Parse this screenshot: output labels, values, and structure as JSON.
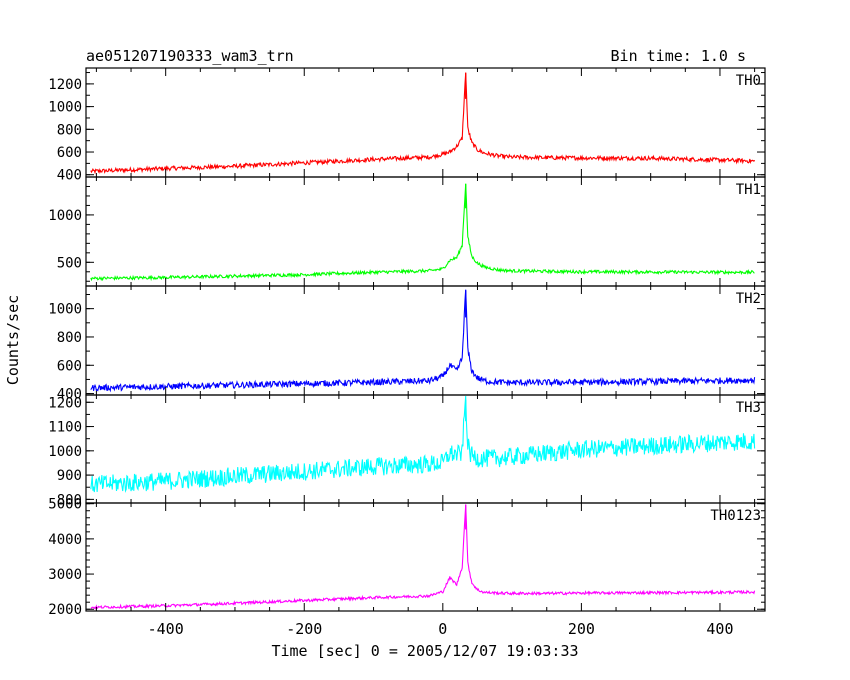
{
  "header": {
    "title": "ae051207190333_wam3_trn",
    "bin_time": "Bin time: 1.0 s"
  },
  "chart_data": {
    "type": "line",
    "title": "ae051207190333_wam3_trn",
    "xlabel": "Time [sec] 0 = 2005/12/07 19:03:33",
    "ylabel": "Counts/sec",
    "xlim": [
      -515,
      465
    ],
    "x_ticks": [
      -400,
      -200,
      0,
      200,
      400
    ],
    "x_minor_step": 50,
    "grid": false,
    "panels": [
      {
        "name": "TH0",
        "color": "#ff0000",
        "ylim": [
          380,
          1340
        ],
        "y_ticks": [
          400,
          600,
          800,
          1000,
          1200
        ],
        "y_minor_step": 100,
        "x": [
          -510,
          -400,
          -300,
          -200,
          -100,
          -20,
          0,
          10,
          20,
          28,
          33,
          36,
          42,
          50,
          60,
          80,
          100,
          150,
          200,
          300,
          400,
          450
        ],
        "y": [
          430,
          455,
          475,
          505,
          535,
          555,
          580,
          600,
          650,
          720,
          1300,
          800,
          680,
          620,
          590,
          565,
          555,
          550,
          548,
          545,
          530,
          520
        ]
      },
      {
        "name": "TH1",
        "color": "#00ff00",
        "ylim": [
          250,
          1400
        ],
        "y_ticks": [
          500,
          1000
        ],
        "y_minor_step": 100,
        "x": [
          -510,
          -400,
          -300,
          -200,
          -100,
          -20,
          0,
          10,
          20,
          28,
          33,
          36,
          42,
          50,
          60,
          80,
          100,
          150,
          200,
          300,
          400,
          450
        ],
        "y": [
          330,
          340,
          355,
          370,
          395,
          410,
          430,
          520,
          550,
          680,
          1330,
          760,
          560,
          490,
          450,
          420,
          410,
          405,
          400,
          398,
          395,
          395
        ]
      },
      {
        "name": "TH2",
        "color": "#0000ff",
        "ylim": [
          390,
          1160
        ],
        "y_ticks": [
          400,
          600,
          800,
          1000
        ],
        "y_minor_step": 100,
        "x": [
          -510,
          -400,
          -300,
          -200,
          -100,
          -20,
          0,
          10,
          20,
          28,
          33,
          36,
          42,
          50,
          60,
          80,
          100,
          150,
          200,
          300,
          400,
          450
        ],
        "y": [
          440,
          450,
          460,
          470,
          480,
          490,
          520,
          600,
          560,
          650,
          1130,
          700,
          560,
          510,
          490,
          480,
          478,
          478,
          480,
          485,
          492,
          495
        ]
      },
      {
        "name": "TH3",
        "color": "#00ffff",
        "ylim": [
          785,
          1230
        ],
        "y_ticks": [
          800,
          900,
          1000,
          1100,
          1200
        ],
        "y_minor_step": 50,
        "x": [
          -510,
          -400,
          -300,
          -200,
          -100,
          -20,
          0,
          10,
          20,
          28,
          33,
          36,
          42,
          50,
          60,
          80,
          100,
          150,
          200,
          300,
          400,
          450
        ],
        "y": [
          860,
          875,
          895,
          915,
          935,
          945,
          950,
          990,
          985,
          990,
          1210,
          1000,
          980,
          970,
          968,
          970,
          975,
          990,
          1005,
          1020,
          1035,
          1040
        ]
      },
      {
        "name": "TH0123",
        "color": "#ff00ff",
        "ylim": [
          1950,
          5020
        ],
        "y_ticks": [
          2000,
          3000,
          4000,
          5000
        ],
        "y_minor_step": 200,
        "x": [
          -510,
          -400,
          -300,
          -200,
          -100,
          -20,
          0,
          10,
          20,
          28,
          33,
          36,
          42,
          50,
          60,
          80,
          100,
          150,
          200,
          300,
          400,
          450
        ],
        "y": [
          2050,
          2100,
          2170,
          2250,
          2330,
          2380,
          2500,
          2900,
          2700,
          3200,
          4980,
          3300,
          2750,
          2550,
          2480,
          2460,
          2450,
          2450,
          2460,
          2470,
          2480,
          2490
        ]
      }
    ]
  }
}
